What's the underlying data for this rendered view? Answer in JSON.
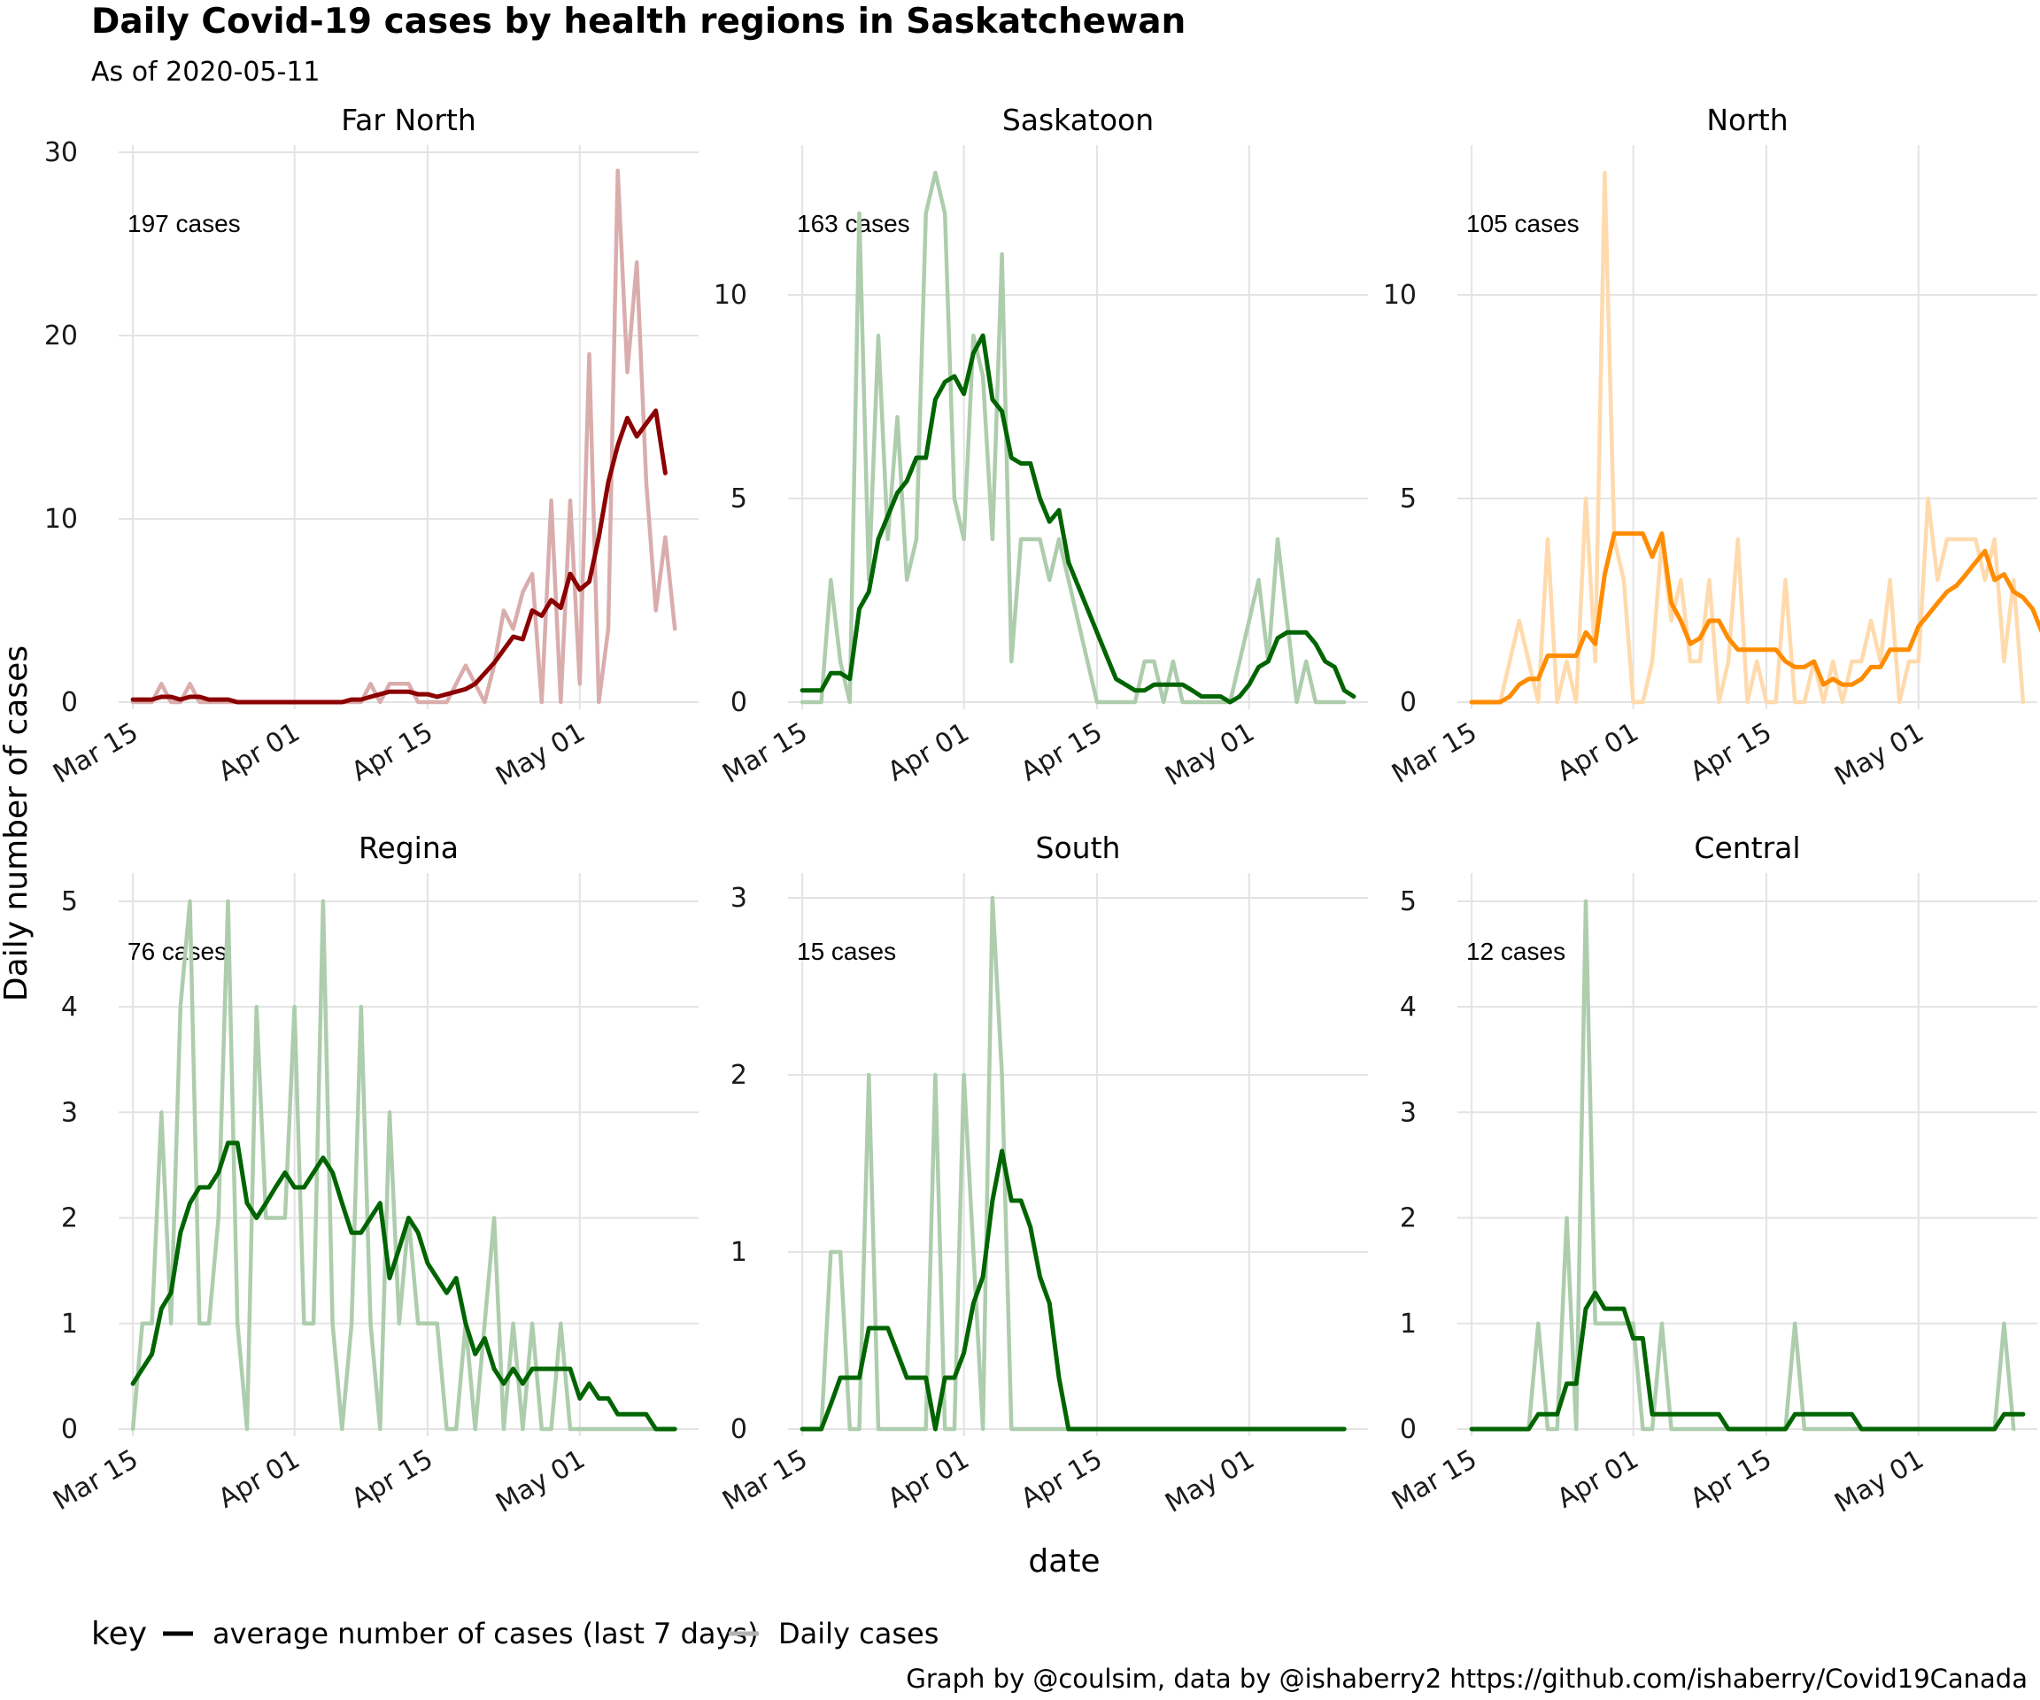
{
  "title": "Daily Covid-19 cases by health regions in Saskatchewan",
  "subtitle": "As of 2020-05-11",
  "caption": "Graph by @coulsim, data by @ishaberry2 https://github.com/ishaberry/Covid19Canada",
  "colors": {
    "gridline": "#e3e3e3"
  },
  "chart_data": {
    "type": "line",
    "facets_layout": "2 rows x 3 columns",
    "scales": "free_y",
    "xlabel": "date",
    "ylabel": "Daily number of cases",
    "x_ticks": [
      "Mar 15",
      "Apr 01",
      "Apr 15",
      "May 01"
    ],
    "x_tick_days": [
      0,
      17,
      31,
      47
    ],
    "x_range_days": [
      0,
      57
    ],
    "legend": {
      "title": "key",
      "position": "bottom",
      "entries": [
        "average number of cases (last 7 days)",
        "Daily cases"
      ]
    },
    "panels": [
      {
        "region": "Far North",
        "annotation": "197 cases",
        "color": "#8b0000",
        "ylim": [
          0,
          30
        ],
        "y_ticks": [
          0,
          10,
          20,
          30
        ],
        "series": [
          {
            "name": "Daily cases",
            "values": [
              0,
              0,
              0,
              1,
              0,
              0,
              1,
              0,
              0,
              0,
              0,
              0,
              0,
              0,
              0,
              0,
              0,
              0,
              0,
              0,
              0,
              0,
              0,
              0,
              0,
              1,
              0,
              1,
              1,
              1,
              0,
              0,
              0,
              0,
              1,
              2,
              1,
              0,
              2,
              5,
              4,
              6,
              7,
              0,
              11,
              0,
              11,
              1,
              19,
              0,
              4,
              29,
              18,
              24,
              12,
              5,
              9,
              4
            ]
          },
          {
            "name": "average number of cases (last 7 days)",
            "values": [
              0.14,
              0.14,
              0.14,
              0.29,
              0.29,
              0.14,
              0.29,
              0.29,
              0.14,
              0.14,
              0.14,
              0.0,
              0.0,
              0.0,
              0.0,
              0.0,
              0.0,
              0.0,
              0.0,
              0.0,
              0.0,
              0.0,
              0.0,
              0.14,
              0.14,
              0.29,
              0.43,
              0.57,
              0.57,
              0.57,
              0.43,
              0.43,
              0.29,
              0.43,
              0.57,
              0.71,
              1.0,
              1.57,
              2.14,
              2.86,
              3.57,
              3.43,
              5.0,
              4.71,
              5.57,
              5.14,
              7.0,
              6.14,
              6.57,
              9.0,
              12.0,
              14.0,
              15.5,
              14.5,
              15.2,
              15.9,
              12.5
            ]
          }
        ]
      },
      {
        "region": "Saskatoon",
        "annotation": "163 cases",
        "color": "#006400",
        "ylim": [
          0,
          13.5
        ],
        "y_ticks": [
          0,
          5,
          10
        ],
        "series": [
          {
            "name": "Daily cases",
            "values": [
              0,
              0,
              0,
              3,
              1,
              0,
              12,
              3,
              9,
              4,
              7,
              3,
              4,
              12,
              13,
              12,
              5,
              4,
              9,
              8,
              4,
              11,
              1,
              4,
              4,
              4,
              3,
              4,
              3,
              2,
              1,
              0,
              0,
              0,
              0,
              0,
              1,
              1,
              0,
              1,
              0,
              0,
              0,
              0,
              0,
              0,
              1,
              2,
              3,
              1,
              4,
              2,
              0,
              1,
              0,
              0,
              0,
              0
            ]
          },
          {
            "name": "average number of cases (last 7 days)",
            "values": [
              0.29,
              0.29,
              0.29,
              0.71,
              0.71,
              0.57,
              2.29,
              2.71,
              4.0,
              4.57,
              5.14,
              5.43,
              6.0,
              6.0,
              7.43,
              7.86,
              8.0,
              7.57,
              8.57,
              9.0,
              7.43,
              7.14,
              6.0,
              5.86,
              5.86,
              5.0,
              4.43,
              4.71,
              3.43,
              2.86,
              2.29,
              1.71,
              1.14,
              0.57,
              0.43,
              0.29,
              0.29,
              0.43,
              0.43,
              0.43,
              0.43,
              0.29,
              0.14,
              0.14,
              0.14,
              0.0,
              0.14,
              0.43,
              0.86,
              1.0,
              1.57,
              1.71,
              1.71,
              1.71,
              1.43,
              1.0,
              0.86,
              0.29,
              0.14
            ]
          }
        ]
      },
      {
        "region": "North",
        "annotation": "105 cases",
        "color": "#ff8c00",
        "ylim": [
          0,
          13.5
        ],
        "y_ticks": [
          0,
          5,
          10
        ],
        "series": [
          {
            "name": "Daily cases",
            "values": [
              0,
              0,
              0,
              0,
              1,
              2,
              1,
              0,
              4,
              0,
              1,
              0,
              5,
              1,
              13,
              4,
              3,
              0,
              0,
              1,
              4,
              2,
              3,
              1,
              1,
              3,
              0,
              1,
              4,
              0,
              1,
              0,
              0,
              3,
              0,
              0,
              1,
              0,
              1,
              0,
              1,
              1,
              2,
              1,
              3,
              0,
              1,
              1,
              5,
              3,
              4,
              4,
              4,
              4,
              3,
              4,
              1,
              3,
              0
            ]
          },
          {
            "name": "average number of cases (last 7 days)",
            "values": [
              0.0,
              0.0,
              0.0,
              0.0,
              0.14,
              0.43,
              0.57,
              0.57,
              1.14,
              1.14,
              1.14,
              1.14,
              1.71,
              1.43,
              3.14,
              4.14,
              4.14,
              4.14,
              4.14,
              3.57,
              4.14,
              2.43,
              2.0,
              1.43,
              1.57,
              2.0,
              2.0,
              1.57,
              1.29,
              1.29,
              1.29,
              1.29,
              1.29,
              1.0,
              0.86,
              0.86,
              1.0,
              0.43,
              0.57,
              0.43,
              0.43,
              0.57,
              0.86,
              0.86,
              1.29,
              1.29,
              1.29,
              1.86,
              2.14,
              2.43,
              2.71,
              2.86,
              3.14,
              3.43,
              3.71,
              3.0,
              3.14,
              2.71,
              2.57,
              2.29,
              1.71
            ]
          }
        ]
      },
      {
        "region": "Regina",
        "annotation": "76 cases",
        "color": "#006400",
        "ylim": [
          0,
          5.2
        ],
        "y_ticks": [
          0,
          1,
          2,
          3,
          4,
          5
        ],
        "series": [
          {
            "name": "Daily cases",
            "values": [
              0,
              1,
              1,
              3,
              1,
              4,
              5,
              1,
              1,
              2,
              5,
              1,
              0,
              4,
              2,
              2,
              2,
              4,
              1,
              1,
              5,
              1,
              0,
              1,
              4,
              1,
              0,
              3,
              1,
              2,
              1,
              1,
              1,
              0,
              0,
              1,
              0,
              1,
              2,
              0,
              1,
              0,
              1,
              0,
              0,
              1,
              0,
              0,
              0,
              0,
              0,
              0,
              0,
              0,
              0,
              0,
              0
            ]
          },
          {
            "name": "average number of cases (last 7 days)",
            "values": [
              0.43,
              0.57,
              0.71,
              1.14,
              1.29,
              1.86,
              2.14,
              2.29,
              2.29,
              2.43,
              2.71,
              2.71,
              2.14,
              2.0,
              2.14,
              2.29,
              2.43,
              2.29,
              2.29,
              2.43,
              2.57,
              2.43,
              2.14,
              1.86,
              1.86,
              2.0,
              2.14,
              1.43,
              1.71,
              2.0,
              1.86,
              1.57,
              1.43,
              1.29,
              1.43,
              1.0,
              0.71,
              0.86,
              0.57,
              0.43,
              0.57,
              0.43,
              0.57,
              0.57,
              0.57,
              0.57,
              0.57,
              0.29,
              0.43,
              0.29,
              0.29,
              0.14,
              0.14,
              0.14,
              0.14,
              0.0,
              0.0,
              0.0
            ]
          }
        ]
      },
      {
        "region": "South",
        "annotation": "15 cases",
        "color": "#006400",
        "ylim": [
          0,
          3.1
        ],
        "y_ticks": [
          0,
          1,
          2,
          3
        ],
        "series": [
          {
            "name": "Daily cases",
            "values": [
              0,
              0,
              0,
              1,
              1,
              0,
              0,
              2,
              0,
              0,
              0,
              0,
              0,
              0,
              2,
              0,
              0,
              2,
              1,
              0,
              3,
              2,
              0,
              0,
              0,
              0,
              0,
              0,
              0,
              0,
              0,
              0,
              0,
              0,
              0,
              0,
              0,
              0,
              0,
              0,
              0,
              0,
              0,
              0,
              0,
              0,
              0,
              0,
              0,
              0,
              0,
              0,
              0,
              0,
              0,
              0,
              0,
              0
            ]
          },
          {
            "name": "average number of cases (last 7 days)",
            "values": [
              0.0,
              0.0,
              0.0,
              0.14,
              0.29,
              0.29,
              0.29,
              0.57,
              0.57,
              0.57,
              0.43,
              0.29,
              0.29,
              0.29,
              0.0,
              0.29,
              0.29,
              0.43,
              0.71,
              0.86,
              1.29,
              1.57,
              1.29,
              1.29,
              1.14,
              0.86,
              0.71,
              0.29,
              0.0,
              0.0,
              0.0,
              0.0,
              0.0,
              0.0,
              0.0,
              0.0,
              0.0,
              0.0,
              0.0,
              0.0,
              0.0,
              0.0,
              0.0,
              0.0,
              0.0,
              0.0,
              0.0,
              0.0,
              0.0,
              0.0,
              0.0,
              0.0,
              0.0,
              0.0,
              0.0,
              0.0,
              0.0,
              0.0
            ]
          }
        ]
      },
      {
        "region": "Central",
        "annotation": "12 cases",
        "color": "#006400",
        "ylim": [
          0,
          5.2
        ],
        "y_ticks": [
          0,
          1,
          2,
          3,
          4,
          5
        ],
        "series": [
          {
            "name": "Daily cases",
            "values": [
              0,
              0,
              0,
              0,
              0,
              0,
              0,
              1,
              0,
              0,
              2,
              0,
              5,
              1,
              1,
              1,
              1,
              1,
              0,
              0,
              1,
              0,
              0,
              0,
              0,
              0,
              0,
              0,
              0,
              0,
              0,
              0,
              0,
              0,
              1,
              0,
              0,
              0,
              0,
              0,
              0,
              0,
              0,
              0,
              0,
              0,
              0,
              0,
              0,
              0,
              0,
              0,
              0,
              0,
              0,
              0,
              1,
              0
            ]
          },
          {
            "name": "average number of cases (last 7 days)",
            "values": [
              0.0,
              0.0,
              0.0,
              0.0,
              0.0,
              0.0,
              0.0,
              0.14,
              0.14,
              0.14,
              0.43,
              0.43,
              1.14,
              1.29,
              1.14,
              1.14,
              1.14,
              0.86,
              0.86,
              0.14,
              0.14,
              0.14,
              0.14,
              0.14,
              0.14,
              0.14,
              0.14,
              0.0,
              0.0,
              0.0,
              0.0,
              0.0,
              0.0,
              0.0,
              0.14,
              0.14,
              0.14,
              0.14,
              0.14,
              0.14,
              0.14,
              0.0,
              0.0,
              0.0,
              0.0,
              0.0,
              0.0,
              0.0,
              0.0,
              0.0,
              0.0,
              0.0,
              0.0,
              0.0,
              0.0,
              0.0,
              0.14,
              0.14,
              0.14
            ]
          }
        ]
      }
    ]
  }
}
